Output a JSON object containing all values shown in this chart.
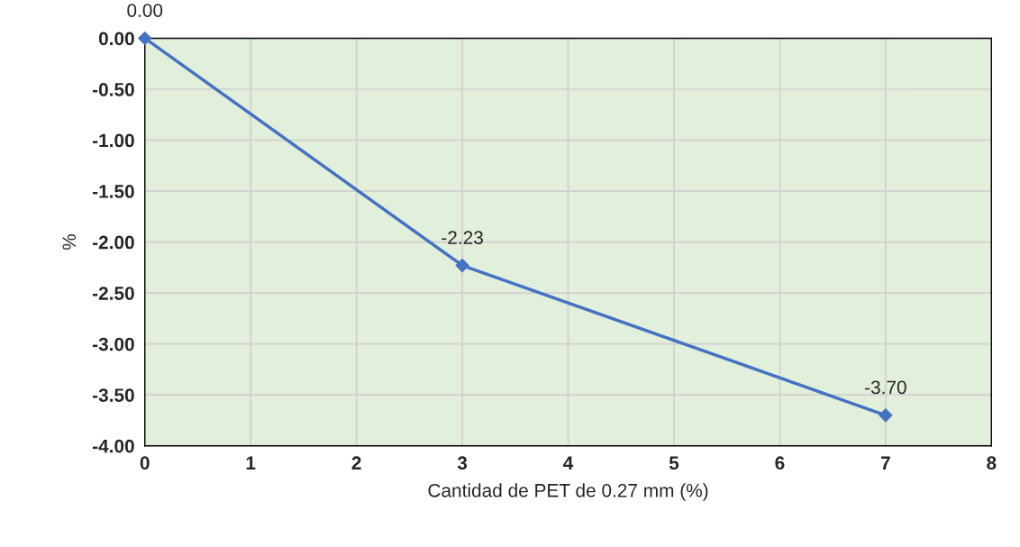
{
  "chart_data": {
    "type": "line",
    "xlabel": "Cantidad de PET de 0.27 mm (%)",
    "ylabel": "%",
    "x": [
      0,
      3,
      7
    ],
    "series": [
      {
        "color": "#4472c4",
        "values": [
          0.0,
          -2.23,
          -3.7
        ],
        "value_labels": [
          "0.00",
          "-2.23",
          "-3.70"
        ]
      }
    ],
    "xlim": [
      0,
      8
    ],
    "xticks": [
      0,
      1,
      2,
      3,
      4,
      5,
      6,
      7,
      8
    ],
    "ylim": [
      -4,
      0
    ],
    "yticks": [
      {
        "value": 0,
        "label": "0.00"
      },
      {
        "value": -0.5,
        "label": "-0.50"
      },
      {
        "value": -1,
        "label": "-1.00"
      },
      {
        "value": -1.5,
        "label": "-1.50"
      },
      {
        "value": -2,
        "label": "-2.00"
      },
      {
        "value": -2.5,
        "label": "-2.50"
      },
      {
        "value": -3,
        "label": "-3.00"
      },
      {
        "value": -3.5,
        "label": "-3.50"
      },
      {
        "value": -4,
        "label": "-4.00"
      }
    ],
    "grid": true,
    "marker": "diamond",
    "line_style": "solid"
  }
}
